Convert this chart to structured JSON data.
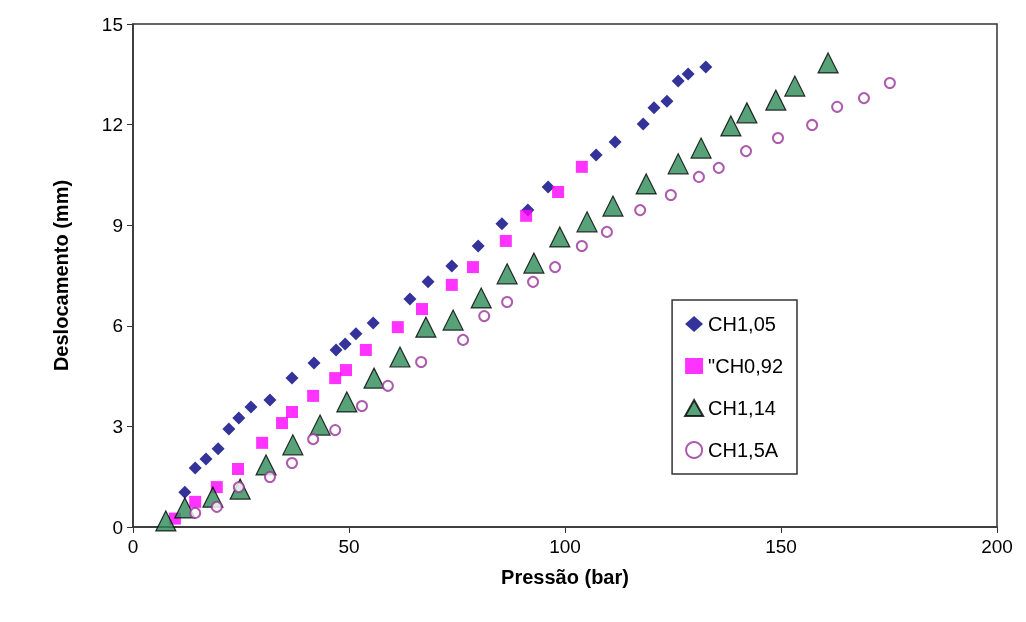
{
  "chart_data": {
    "type": "scatter",
    "xlabel": "Pressão (bar)",
    "ylabel": "Deslocamento (mm)",
    "xlim": [
      0,
      200
    ],
    "xticks": [
      0,
      50,
      100,
      150,
      200
    ],
    "ylim": [
      0,
      15
    ],
    "yticks": [
      0,
      3,
      6,
      9,
      12,
      15
    ],
    "grid": false,
    "legend": "right",
    "series": [
      {
        "name": "CH1,05",
        "color": "#000080",
        "marker": "diamond",
        "x": [
          12.0,
          14.4,
          16.9,
          19.7,
          22.2,
          24.5,
          27.3,
          31.7,
          36.8,
          41.9,
          47.0,
          49.1,
          51.6,
          55.6,
          64.1,
          68.3,
          73.8,
          79.9,
          85.4,
          91.4,
          96.1,
          107.2,
          111.6,
          118.1,
          120.6,
          123.6,
          126.2,
          128.5,
          132.6
        ],
        "values": [
          1.04,
          1.76,
          2.03,
          2.33,
          2.92,
          3.25,
          3.58,
          3.79,
          4.44,
          4.89,
          5.28,
          5.46,
          5.76,
          6.08,
          6.8,
          7.31,
          7.78,
          8.38,
          9.04,
          9.45,
          10.14,
          11.09,
          11.48,
          12.02,
          12.5,
          12.7,
          13.3,
          13.51,
          13.72
        ]
      },
      {
        "name": "\"CH0,92",
        "color": "#ff00ff",
        "marker": "square",
        "x": [
          9.7,
          14.4,
          19.4,
          24.3,
          29.9,
          34.5,
          36.8,
          41.7,
          46.8,
          49.3,
          53.9,
          61.3,
          66.9,
          73.8,
          78.7,
          86.3,
          91.0,
          98.4,
          103.9
        ],
        "values": [
          0.25,
          0.75,
          1.19,
          1.73,
          2.51,
          3.1,
          3.43,
          3.91,
          4.44,
          4.68,
          5.28,
          5.96,
          6.5,
          7.22,
          7.75,
          8.53,
          9.28,
          9.99,
          10.74
        ]
      },
      {
        "name": "CH1,14",
        "color": "#2e8b57",
        "marker": "triangle",
        "x": [
          7.6,
          12.0,
          18.5,
          24.8,
          30.8,
          37.0,
          43.3,
          49.5,
          55.8,
          61.8,
          67.8,
          74.1,
          80.6,
          86.6,
          92.8,
          98.8,
          105.1,
          111.1,
          118.8,
          126.2,
          131.5,
          138.4,
          142.1,
          148.8,
          153.2,
          160.9
        ],
        "values": [
          0.18,
          0.57,
          0.89,
          1.13,
          1.85,
          2.45,
          3.04,
          3.73,
          4.44,
          5.07,
          5.96,
          6.17,
          6.83,
          7.55,
          7.87,
          8.65,
          9.1,
          9.57,
          10.23,
          10.83,
          11.3,
          11.96,
          12.35,
          12.73,
          13.15,
          13.84
        ]
      },
      {
        "name": "CH1,5A",
        "color": "#993399",
        "marker": "circle",
        "x": [
          14.4,
          19.4,
          24.5,
          31.7,
          36.8,
          41.7,
          46.8,
          53.0,
          59.0,
          66.7,
          76.4,
          81.3,
          86.6,
          92.6,
          97.7,
          103.9,
          109.7,
          117.4,
          124.5,
          131.0,
          135.6,
          141.9,
          149.3,
          157.2,
          163.0,
          169.2,
          175.2
        ],
        "values": [
          0.42,
          0.6,
          1.19,
          1.49,
          1.91,
          2.62,
          2.89,
          3.61,
          4.21,
          4.92,
          5.58,
          6.29,
          6.71,
          7.31,
          7.75,
          8.38,
          8.8,
          9.45,
          9.9,
          10.44,
          10.71,
          11.21,
          11.6,
          11.99,
          12.53,
          12.79,
          13.24
        ]
      }
    ]
  }
}
